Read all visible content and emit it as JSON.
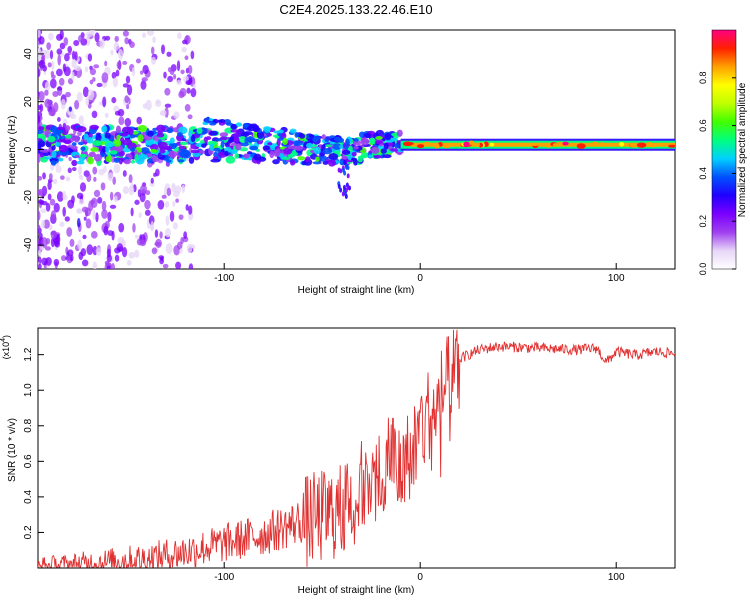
{
  "title": "C2E4.2025.133.22.46.E10",
  "colorbar": {
    "label": "Normalized spectral amplitude",
    "ticks": [
      "0.0",
      "0.2",
      "0.4",
      "0.6",
      "0.8"
    ],
    "colors": [
      "#ffffff",
      "#e6d6f7",
      "#a040f0",
      "#7a00ff",
      "#2000ff",
      "#0050ff",
      "#00d0ff",
      "#00ff80",
      "#40ff00",
      "#c0ff00",
      "#ffff00",
      "#ffa000",
      "#ff2000",
      "#ff0080"
    ]
  },
  "chart_data": [
    {
      "type": "heatmap",
      "title": "C2E4.2025.133.22.46.E10",
      "xlabel": "Height of straight line (km)",
      "ylabel": "Frequency (Hz)",
      "xlim": [
        -195,
        130
      ],
      "ylim": [
        -50,
        50
      ],
      "xticks": [
        "-100",
        "0",
        "100"
      ],
      "yticks": [
        "-40",
        "-20",
        "0",
        "20",
        "40"
      ],
      "dominant_band_hz": 2,
      "band_regions": [
        {
          "x_range": [
            -195,
            -120
          ],
          "pattern": "scattered low-amplitude noise"
        },
        {
          "x_range": [
            -195,
            -10
          ],
          "pattern": "noisy band near 0-5 Hz, amplitude 0.1-0.5"
        },
        {
          "x_range": [
            -10,
            130
          ],
          "pattern": "strong stable band near 2 Hz, amplitude 0.8-1.0"
        }
      ]
    },
    {
      "type": "line",
      "xlabel": "Height of straight line (km)",
      "ylabel": "SNR (10 * v/v)",
      "yscale_label": "(x10",
      "yscale_exp": "4",
      "xlim": [
        -195,
        130
      ],
      "ylim": [
        0,
        1.35
      ],
      "xticks": [
        "-100",
        "0",
        "100"
      ],
      "yticks": [
        "0.2",
        "0.4",
        "0.6",
        "0.8",
        "1.0",
        "1.2"
      ],
      "color": "#e03030",
      "series": [
        {
          "name": "SNR",
          "x": [
            -195,
            -180,
            -160,
            -140,
            -120,
            -100,
            -80,
            -60,
            -40,
            -30,
            -20,
            -15,
            -10,
            0,
            10,
            20,
            30,
            40,
            60,
            80,
            90,
            95,
            100,
            110,
            120,
            130
          ],
          "y": [
            0.01,
            0.02,
            0.04,
            0.06,
            0.1,
            0.15,
            0.2,
            0.28,
            0.35,
            0.45,
            0.55,
            0.7,
            0.55,
            0.82,
            1.0,
            1.18,
            1.23,
            1.25,
            1.24,
            1.23,
            1.24,
            1.16,
            1.22,
            1.2,
            1.22,
            1.21
          ]
        }
      ]
    }
  ]
}
